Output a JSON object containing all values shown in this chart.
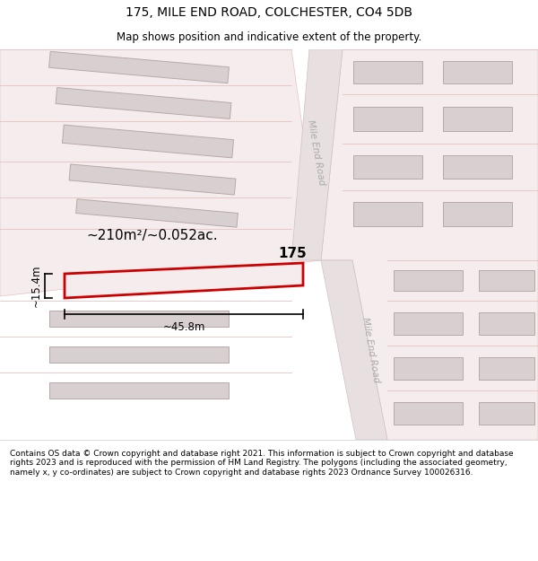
{
  "title": "175, MILE END ROAD, COLCHESTER, CO4 5DB",
  "subtitle": "Map shows position and indicative extent of the property.",
  "footer": "Contains OS data © Crown copyright and database right 2021. This information is subject to Crown copyright and database rights 2023 and is reproduced with the permission of HM Land Registry. The polygons (including the associated geometry, namely x, y co-ordinates) are subject to Crown copyright and database rights 2023 Ordnance Survey 100026316.",
  "bg_color": "#ffffff",
  "map_bg": "#faf4f4",
  "road_fill": "#e8e0e0",
  "road_edge": "#d0c0c0",
  "bldg_fill": "#d8d0d0",
  "bldg_edge": "#b8a8a8",
  "lot_fill": "#f5eded",
  "lot_edge": "#e8c0c0",
  "plot_stroke": "#cc0000",
  "plot_label": "175",
  "area_label": "~210m²/~0.052ac.",
  "width_label": "~45.8m",
  "height_label": "~15.4m",
  "road_label1": "Mile End Road",
  "road_label2": "Mile End Road",
  "road_text_color": "#aaaaaa",
  "annotation_color": "#000000",
  "title_fontsize": 10,
  "subtitle_fontsize": 8.5,
  "footer_fontsize": 6.5
}
